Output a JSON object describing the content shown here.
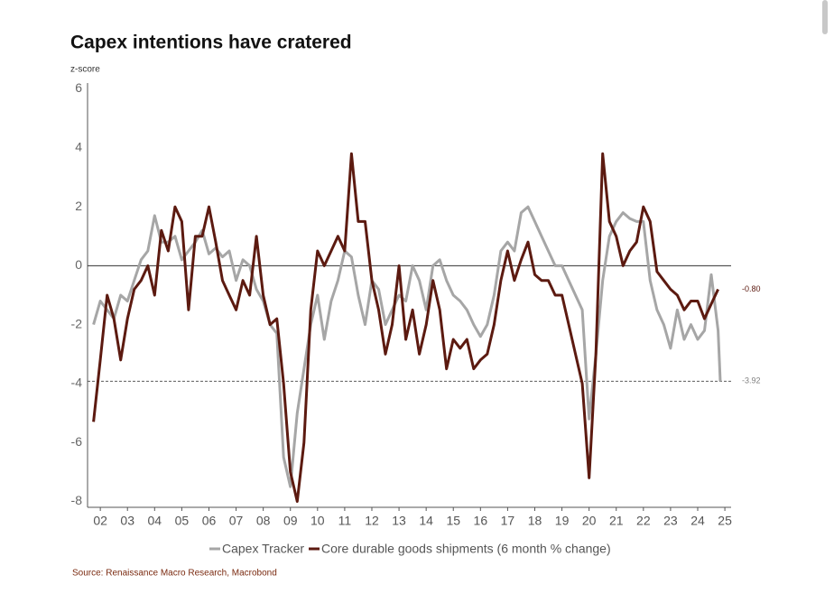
{
  "chart_data": {
    "type": "line",
    "title": "Capex intentions have cratered",
    "y_label": "z-score",
    "source": "Source: Renaissance Macro Research, Macrobond",
    "x": [
      2001.75,
      2002,
      2002.25,
      2002.5,
      2002.75,
      2003,
      2003.25,
      2003.5,
      2003.75,
      2004,
      2004.25,
      2004.5,
      2004.75,
      2005,
      2005.25,
      2005.5,
      2005.75,
      2006,
      2006.25,
      2006.5,
      2006.75,
      2007,
      2007.25,
      2007.5,
      2007.75,
      2008,
      2008.25,
      2008.5,
      2008.75,
      2009,
      2009.25,
      2009.5,
      2009.75,
      2010,
      2010.25,
      2010.5,
      2010.75,
      2011,
      2011.25,
      2011.5,
      2011.75,
      2012,
      2012.25,
      2012.5,
      2012.75,
      2013,
      2013.25,
      2013.5,
      2013.75,
      2014,
      2014.25,
      2014.5,
      2014.75,
      2015,
      2015.25,
      2015.5,
      2015.75,
      2016,
      2016.25,
      2016.5,
      2016.75,
      2017,
      2017.25,
      2017.5,
      2017.75,
      2018,
      2018.25,
      2018.5,
      2018.75,
      2019,
      2019.25,
      2019.5,
      2019.75,
      2020,
      2020.25,
      2020.5,
      2020.75,
      2021,
      2021.25,
      2021.5,
      2021.75,
      2022,
      2022.25,
      2022.5,
      2022.75,
      2023,
      2023.25,
      2023.5,
      2023.75,
      2024,
      2024.25,
      2024.5,
      2024.75,
      2024.83
    ],
    "series": [
      {
        "name": "Capex Tracker",
        "color": "#a6a6a6",
        "values": [
          -2.0,
          -1.2,
          -1.5,
          -1.8,
          -1.0,
          -1.2,
          -0.5,
          0.2,
          0.5,
          1.7,
          0.8,
          0.8,
          1.0,
          0.2,
          0.5,
          0.8,
          1.2,
          0.4,
          0.6,
          0.3,
          0.5,
          -0.5,
          0.2,
          0.0,
          -0.8,
          -1.2,
          -2.0,
          -2.3,
          -6.5,
          -7.5,
          -5.0,
          -3.5,
          -2.0,
          -1.0,
          -2.5,
          -1.2,
          -0.5,
          0.5,
          0.3,
          -1.0,
          -2.0,
          -0.5,
          -0.8,
          -2.0,
          -1.5,
          -1.0,
          -1.2,
          0.0,
          -0.5,
          -1.5,
          0.0,
          0.2,
          -0.5,
          -1.0,
          -1.2,
          -1.5,
          -2.0,
          -2.4,
          -2.0,
          -1.0,
          0.5,
          0.8,
          0.5,
          1.8,
          2.0,
          1.5,
          1.0,
          0.5,
          0.0,
          0.0,
          -0.5,
          -1.0,
          -1.5,
          -5.2,
          -3.0,
          -0.5,
          1.0,
          1.5,
          1.8,
          1.6,
          1.5,
          1.5,
          -0.5,
          -1.5,
          -2.0,
          -2.8,
          -1.5,
          -2.5,
          -2.0,
          -2.5,
          -2.2,
          -0.3,
          -2.2,
          -3.92
        ]
      },
      {
        "name": "Core durable goods shipments (6 month % change)",
        "color": "#5c1a10",
        "values": [
          -5.3,
          -3.2,
          -1.0,
          -1.8,
          -3.2,
          -1.8,
          -0.8,
          -0.5,
          0.0,
          -1.0,
          1.2,
          0.5,
          2.0,
          1.5,
          -1.5,
          1.0,
          1.0,
          2.0,
          0.8,
          -0.5,
          -1.0,
          -1.5,
          -0.5,
          -1.0,
          1.0,
          -1.0,
          -2.0,
          -1.8,
          -4.0,
          -7.0,
          -8.0,
          -6.0,
          -1.5,
          0.5,
          0.0,
          0.5,
          1.0,
          0.5,
          3.8,
          1.5,
          1.5,
          -0.5,
          -1.5,
          -3.0,
          -2.0,
          0.0,
          -2.5,
          -1.5,
          -3.0,
          -2.0,
          -0.5,
          -1.5,
          -3.5,
          -2.5,
          -2.8,
          -2.5,
          -3.5,
          -3.2,
          -3.0,
          -2.0,
          -0.5,
          0.5,
          -0.5,
          0.2,
          0.8,
          -0.3,
          -0.5,
          -0.5,
          -1.0,
          -1.0,
          -2.0,
          -3.0,
          -4.0,
          -7.2,
          -3.0,
          3.8,
          1.5,
          1.0,
          0.0,
          0.5,
          0.8,
          2.0,
          1.5,
          -0.2,
          -0.5,
          -0.8,
          -1.0,
          -1.5,
          -1.2,
          -1.2,
          -1.8,
          -1.3,
          -0.8,
          null
        ]
      }
    ],
    "annotations": [
      {
        "label": "-0.80",
        "value": -0.8,
        "color": "#5c1a10",
        "line": false
      },
      {
        "label": "-3.92",
        "value": -3.92,
        "color": "#808080",
        "line": true
      }
    ],
    "xlim": [
      2001.53,
      2025.23
    ],
    "xticks": [
      {
        "value": 2002,
        "label": "02"
      },
      {
        "value": 2003,
        "label": "03"
      },
      {
        "value": 2004,
        "label": "04"
      },
      {
        "value": 2005,
        "label": "05"
      },
      {
        "value": 2006,
        "label": "06"
      },
      {
        "value": 2007,
        "label": "07"
      },
      {
        "value": 2008,
        "label": "08"
      },
      {
        "value": 2009,
        "label": "09"
      },
      {
        "value": 2010,
        "label": "10"
      },
      {
        "value": 2011,
        "label": "11"
      },
      {
        "value": 2012,
        "label": "12"
      },
      {
        "value": 2013,
        "label": "13"
      },
      {
        "value": 2014,
        "label": "14"
      },
      {
        "value": 2015,
        "label": "15"
      },
      {
        "value": 2016,
        "label": "16"
      },
      {
        "value": 2017,
        "label": "17"
      },
      {
        "value": 2018,
        "label": "18"
      },
      {
        "value": 2019,
        "label": "19"
      },
      {
        "value": 2020,
        "label": "20"
      },
      {
        "value": 2021,
        "label": "21"
      },
      {
        "value": 2022,
        "label": "22"
      },
      {
        "value": 2023,
        "label": "23"
      },
      {
        "value": 2024,
        "label": "24"
      },
      {
        "value": 2025,
        "label": "25"
      }
    ],
    "ylim": [
      -8.2,
      6.2
    ],
    "yticks": [
      -8,
      -6,
      -4,
      -2,
      0,
      2,
      4,
      6
    ],
    "zero_line": true,
    "grid": false
  }
}
